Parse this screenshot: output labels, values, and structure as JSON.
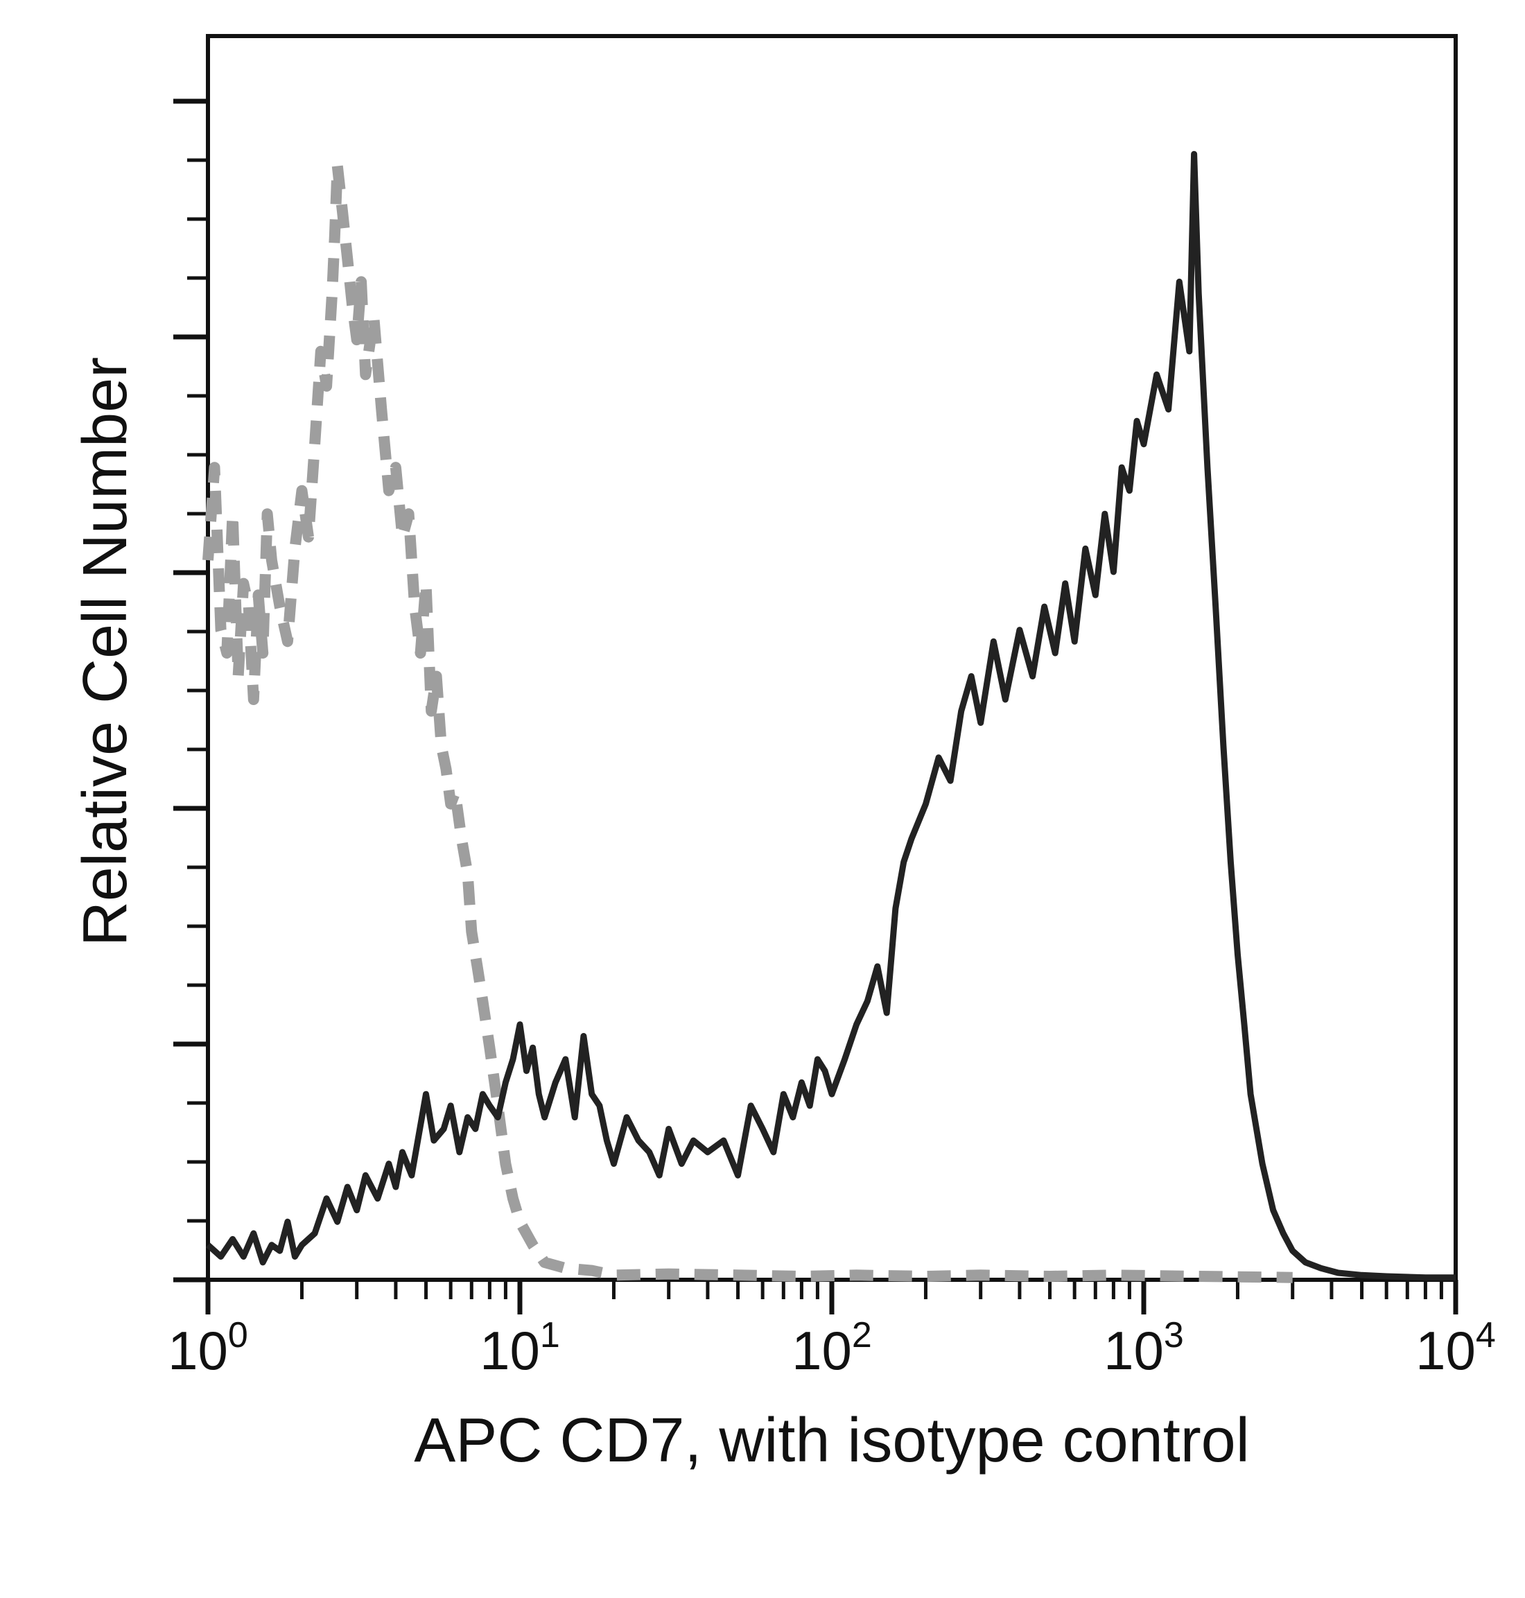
{
  "chart_data": {
    "type": "line",
    "title": "",
    "xlabel": "APC CD7, with isotype control",
    "ylabel": "Relative Cell Number",
    "xscale": "log",
    "xlim": [
      1,
      10000
    ],
    "ylim": [
      0,
      100
    ],
    "x_tick_labels": [
      {
        "base": "10",
        "exp": "0"
      },
      {
        "base": "10",
        "exp": "1"
      },
      {
        "base": "10",
        "exp": "2"
      },
      {
        "base": "10",
        "exp": "3"
      },
      {
        "base": "10",
        "exp": "4"
      }
    ],
    "x_tick_values": [
      1,
      10,
      100,
      1000,
      10000
    ],
    "grid": false,
    "legend": "none",
    "series": [
      {
        "style": "dashed",
        "color": "#9e9e9e",
        "points": [
          [
            1.0,
            62
          ],
          [
            1.05,
            70
          ],
          [
            1.1,
            56
          ],
          [
            1.15,
            54
          ],
          [
            1.2,
            66
          ],
          [
            1.25,
            52
          ],
          [
            1.3,
            60
          ],
          [
            1.35,
            58
          ],
          [
            1.4,
            50
          ],
          [
            1.45,
            59
          ],
          [
            1.5,
            54
          ],
          [
            1.55,
            66
          ],
          [
            1.6,
            62
          ],
          [
            1.7,
            58
          ],
          [
            1.8,
            55
          ],
          [
            1.9,
            63
          ],
          [
            2.0,
            68
          ],
          [
            2.1,
            64
          ],
          [
            2.2,
            72
          ],
          [
            2.3,
            80
          ],
          [
            2.4,
            77
          ],
          [
            2.5,
            85
          ],
          [
            2.55,
            90
          ],
          [
            2.6,
            96
          ],
          [
            2.7,
            92
          ],
          [
            2.8,
            88
          ],
          [
            2.9,
            84
          ],
          [
            3.0,
            81
          ],
          [
            3.1,
            86
          ],
          [
            3.2,
            78
          ],
          [
            3.4,
            83
          ],
          [
            3.6,
            75
          ],
          [
            3.8,
            68
          ],
          [
            4.0,
            70
          ],
          [
            4.2,
            64
          ],
          [
            4.4,
            66
          ],
          [
            4.6,
            58
          ],
          [
            4.8,
            54
          ],
          [
            5.0,
            60
          ],
          [
            5.2,
            49
          ],
          [
            5.4,
            52
          ],
          [
            5.6,
            46
          ],
          [
            5.8,
            44
          ],
          [
            6.0,
            41
          ],
          [
            6.2,
            42
          ],
          [
            6.5,
            38
          ],
          [
            6.8,
            35
          ],
          [
            7.0,
            30
          ],
          [
            7.3,
            27
          ],
          [
            7.6,
            24
          ],
          [
            8.0,
            20
          ],
          [
            8.5,
            15
          ],
          [
            9.0,
            10
          ],
          [
            9.5,
            7
          ],
          [
            10.0,
            5
          ],
          [
            11.0,
            3
          ],
          [
            12.0,
            1.5
          ],
          [
            14.0,
            1
          ],
          [
            17.0,
            0.8
          ],
          [
            20.0,
            0.4
          ],
          [
            30.0,
            0.5
          ],
          [
            50.0,
            0.4
          ],
          [
            80.0,
            0.3
          ],
          [
            120.0,
            0.4
          ],
          [
            200.0,
            0.3
          ],
          [
            300.0,
            0.4
          ],
          [
            500.0,
            0.3
          ],
          [
            800.0,
            0.4
          ],
          [
            1500.0,
            0.3
          ],
          [
            3000.0,
            0.2
          ]
        ]
      },
      {
        "style": "solid",
        "color": "#222222",
        "points": [
          [
            1.0,
            3
          ],
          [
            1.1,
            2
          ],
          [
            1.2,
            3.5
          ],
          [
            1.3,
            2
          ],
          [
            1.4,
            4
          ],
          [
            1.5,
            1.5
          ],
          [
            1.6,
            3
          ],
          [
            1.7,
            2.5
          ],
          [
            1.8,
            5
          ],
          [
            1.9,
            2
          ],
          [
            2.0,
            3
          ],
          [
            2.2,
            4
          ],
          [
            2.4,
            7
          ],
          [
            2.6,
            5
          ],
          [
            2.8,
            8
          ],
          [
            3.0,
            6
          ],
          [
            3.2,
            9
          ],
          [
            3.5,
            7
          ],
          [
            3.8,
            10
          ],
          [
            4.0,
            8
          ],
          [
            4.2,
            11
          ],
          [
            4.5,
            9
          ],
          [
            5.0,
            16
          ],
          [
            5.3,
            12
          ],
          [
            5.7,
            13
          ],
          [
            6.0,
            15
          ],
          [
            6.4,
            11
          ],
          [
            6.8,
            14
          ],
          [
            7.2,
            13
          ],
          [
            7.6,
            16
          ],
          [
            8.0,
            15
          ],
          [
            8.5,
            14
          ],
          [
            9.0,
            17
          ],
          [
            9.5,
            19
          ],
          [
            10.0,
            22
          ],
          [
            10.5,
            18
          ],
          [
            11.0,
            20
          ],
          [
            11.5,
            16
          ],
          [
            12.0,
            14
          ],
          [
            13.0,
            17
          ],
          [
            14.0,
            19
          ],
          [
            15.0,
            14
          ],
          [
            16.0,
            21
          ],
          [
            17.0,
            16
          ],
          [
            18.0,
            15
          ],
          [
            19.0,
            12
          ],
          [
            20.0,
            10
          ],
          [
            22.0,
            14
          ],
          [
            24.0,
            12
          ],
          [
            26.0,
            11
          ],
          [
            28.0,
            9
          ],
          [
            30.0,
            13
          ],
          [
            33.0,
            10
          ],
          [
            36.0,
            12
          ],
          [
            40.0,
            11
          ],
          [
            45.0,
            12
          ],
          [
            50.0,
            9
          ],
          [
            55.0,
            15
          ],
          [
            60.0,
            13
          ],
          [
            65.0,
            11
          ],
          [
            70.0,
            16
          ],
          [
            75.0,
            14
          ],
          [
            80.0,
            17
          ],
          [
            85.0,
            15
          ],
          [
            90.0,
            19
          ],
          [
            95.0,
            18
          ],
          [
            100.0,
            16
          ],
          [
            110.0,
            19
          ],
          [
            120.0,
            22
          ],
          [
            130.0,
            24
          ],
          [
            140.0,
            27
          ],
          [
            150.0,
            23
          ],
          [
            160.0,
            32
          ],
          [
            170.0,
            36
          ],
          [
            180.0,
            38
          ],
          [
            200.0,
            41
          ],
          [
            220.0,
            45
          ],
          [
            240.0,
            43
          ],
          [
            260.0,
            49
          ],
          [
            280.0,
            52
          ],
          [
            300.0,
            48
          ],
          [
            330.0,
            55
          ],
          [
            360.0,
            50
          ],
          [
            400.0,
            56
          ],
          [
            440.0,
            52
          ],
          [
            480.0,
            58
          ],
          [
            520.0,
            54
          ],
          [
            560.0,
            60
          ],
          [
            600.0,
            55
          ],
          [
            650.0,
            63
          ],
          [
            700.0,
            59
          ],
          [
            750.0,
            66
          ],
          [
            800.0,
            61
          ],
          [
            850.0,
            70
          ],
          [
            900.0,
            68
          ],
          [
            950.0,
            74
          ],
          [
            1000.0,
            72
          ],
          [
            1100.0,
            78
          ],
          [
            1200.0,
            75
          ],
          [
            1300.0,
            86
          ],
          [
            1400.0,
            80
          ],
          [
            1450.0,
            97
          ],
          [
            1500.0,
            85
          ],
          [
            1600.0,
            70
          ],
          [
            1700.0,
            58
          ],
          [
            1800.0,
            46
          ],
          [
            1900.0,
            36
          ],
          [
            2000.0,
            28
          ],
          [
            2100.0,
            22
          ],
          [
            2200.0,
            16
          ],
          [
            2400.0,
            10
          ],
          [
            2600.0,
            6
          ],
          [
            2800.0,
            4
          ],
          [
            3000.0,
            2.5
          ],
          [
            3300.0,
            1.5
          ],
          [
            3700.0,
            1
          ],
          [
            4200.0,
            0.6
          ],
          [
            5000.0,
            0.4
          ],
          [
            6000.0,
            0.3
          ],
          [
            8000.0,
            0.2
          ],
          [
            10000.0,
            0.2
          ]
        ]
      }
    ]
  }
}
